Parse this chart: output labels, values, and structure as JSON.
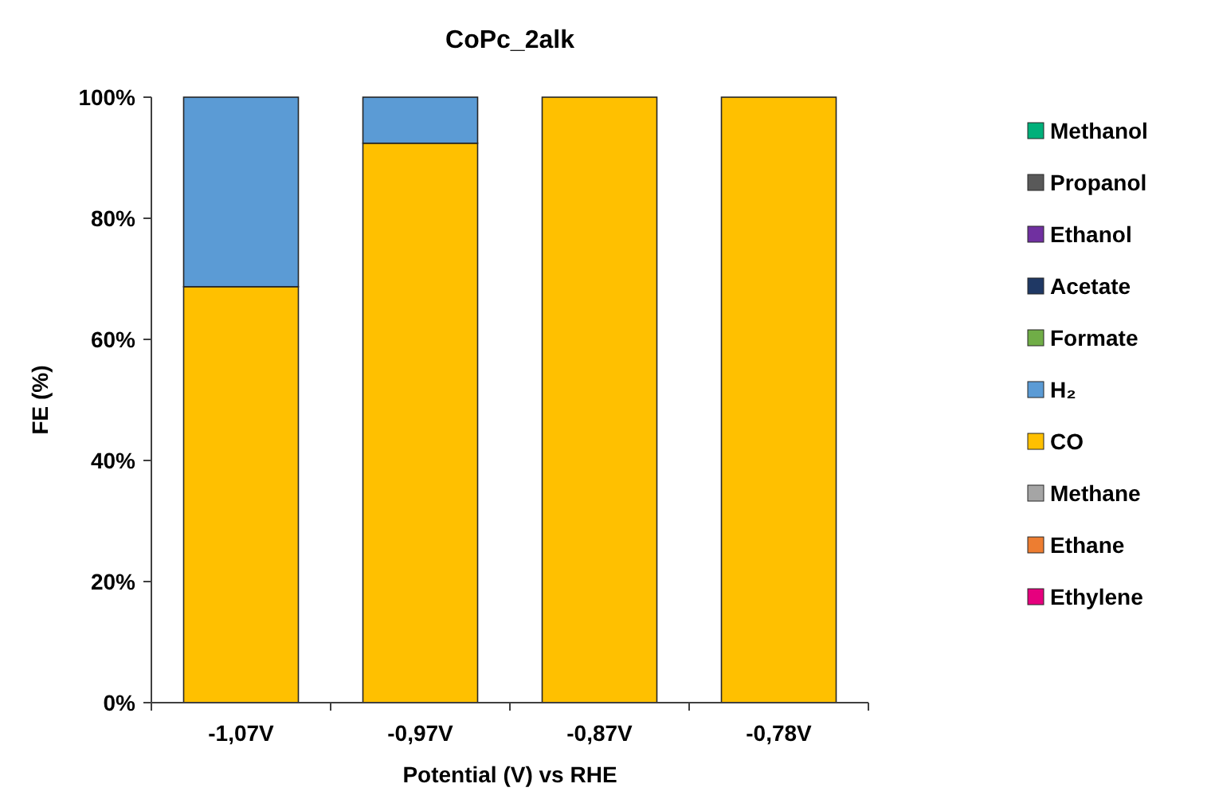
{
  "chart_data": {
    "type": "bar",
    "title": "CoPc_2alk",
    "xlabel": "Potential (V) vs RHE",
    "ylabel": "FE (%)",
    "categories": [
      "-1,07V",
      "-0,97V",
      "-0,87V",
      "-0,78V"
    ],
    "stacked": true,
    "ylim": [
      0,
      100
    ],
    "yticks": [
      {
        "value": 0,
        "label": "0%"
      },
      {
        "value": 20,
        "label": "20%"
      },
      {
        "value": 40,
        "label": "40%"
      },
      {
        "value": 60,
        "label": "60%"
      },
      {
        "value": 80,
        "label": "80%"
      },
      {
        "value": 100,
        "label": "100%"
      }
    ],
    "legend": "right",
    "grid": false,
    "series": [
      {
        "name": "Ethylene",
        "color": "#e6007e",
        "values": [
          0,
          0,
          0,
          0
        ]
      },
      {
        "name": "Ethane",
        "color": "#ed7d31",
        "values": [
          0,
          0,
          0,
          0
        ]
      },
      {
        "name": "Methane",
        "color": "#a5a5a5",
        "values": [
          0,
          0,
          0,
          0
        ]
      },
      {
        "name": "CO",
        "color": "#ffc000",
        "values": [
          68.7,
          92.4,
          100,
          100
        ]
      },
      {
        "name": "H₂",
        "color": "#5b9bd5",
        "values": [
          31.3,
          7.6,
          0,
          0
        ]
      },
      {
        "name": "Formate",
        "color": "#70ad47",
        "values": [
          0,
          0,
          0,
          0
        ]
      },
      {
        "name": "Acetate",
        "color": "#1f3864",
        "values": [
          0,
          0,
          0,
          0
        ]
      },
      {
        "name": "Ethanol",
        "color": "#7030a0",
        "values": [
          0,
          0,
          0,
          0
        ]
      },
      {
        "name": "Propanol",
        "color": "#595959",
        "values": [
          0,
          0,
          0,
          0
        ]
      },
      {
        "name": "Methanol",
        "color": "#00b07a",
        "values": [
          0,
          0,
          0,
          0
        ]
      }
    ]
  }
}
